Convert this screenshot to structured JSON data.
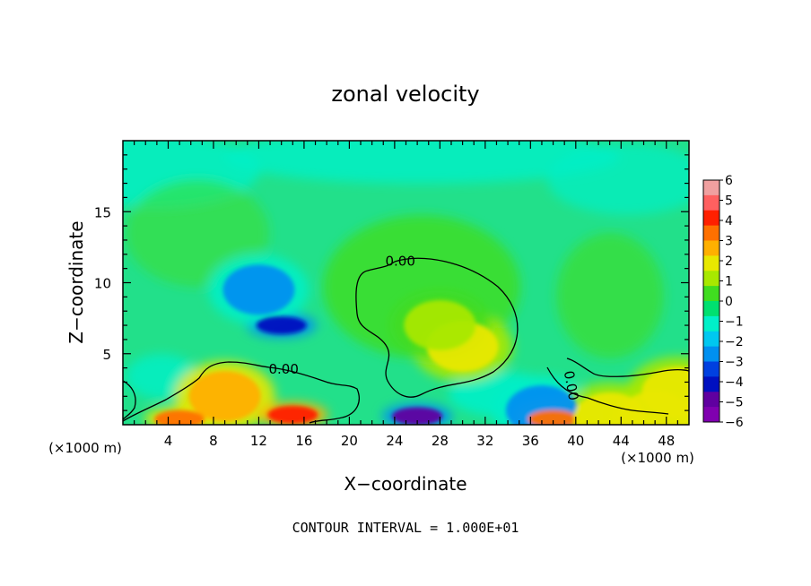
{
  "chart_data": {
    "type": "heatmap",
    "title": "zonal velocity",
    "xlabel": "X−coordinate",
    "ylabel": "Z−coordinate",
    "x_unit_left": "(×1000 m)",
    "x_unit_right": "(×1000 m)",
    "xlim": [
      0,
      50
    ],
    "ylim": [
      0,
      20
    ],
    "x_ticks": [
      4,
      8,
      12,
      16,
      20,
      24,
      28,
      32,
      36,
      40,
      44,
      48
    ],
    "x_tick_labels": [
      "4",
      "8",
      "12",
      "16",
      "20",
      "24",
      "28",
      "32",
      "36",
      "40",
      "44",
      "48"
    ],
    "y_ticks": [
      5,
      10,
      15
    ],
    "y_tick_labels": [
      "5",
      "10",
      "15"
    ],
    "colorbar": {
      "levels": [
        6,
        5,
        4,
        3,
        2,
        1,
        0,
        -1,
        -2,
        -3,
        -4,
        -5,
        -6
      ],
      "labels": [
        "6",
        "5",
        "4",
        "3",
        "2",
        "1",
        "0",
        "−1",
        "−2",
        "−3",
        "−4",
        "−5",
        "−6"
      ],
      "colors": [
        "#f0a0a0",
        "#ff6060",
        "#ff2000",
        "#ff7000",
        "#ffb000",
        "#e8e800",
        "#a8e800",
        "#40dd20",
        "#00e070",
        "#00f0c8",
        "#00c8f0",
        "#0090f0",
        "#0040e0",
        "#0010c0",
        "#6000a0",
        "#8000b0"
      ]
    },
    "background_color": "#22e08a",
    "contour_labels": [
      {
        "text": "0.00",
        "x": 24.5,
        "y": 11.2
      },
      {
        "text": "0.00",
        "x": 14.2,
        "y": 3.6
      },
      {
        "text": "0.00",
        "x": 39.2,
        "y": 2.7
      }
    ],
    "footer": "CONTOUR INTERVAL = 1.000E+01",
    "features": [
      {
        "x": 14,
        "y": 7,
        "value": -4.5
      },
      {
        "x": 12,
        "y": 9.5,
        "value": -2.5
      },
      {
        "x": 30,
        "y": 5.5,
        "value": 2
      },
      {
        "x": 28,
        "y": 7,
        "value": 1
      },
      {
        "x": 9,
        "y": 2,
        "value": 3
      },
      {
        "x": 15,
        "y": 0.7,
        "value": 4.5
      },
      {
        "x": 26,
        "y": 0.6,
        "value": -5
      },
      {
        "x": 37,
        "y": 1,
        "value": -2.5
      },
      {
        "x": 38,
        "y": 0.4,
        "value": 4
      },
      {
        "x": 5,
        "y": 0.4,
        "value": 3.5
      },
      {
        "x": 43,
        "y": 0.5,
        "value": 2
      },
      {
        "x": 47,
        "y": 0.6,
        "value": 2
      },
      {
        "x": 49,
        "y": 2.3,
        "value": 2
      }
    ]
  }
}
